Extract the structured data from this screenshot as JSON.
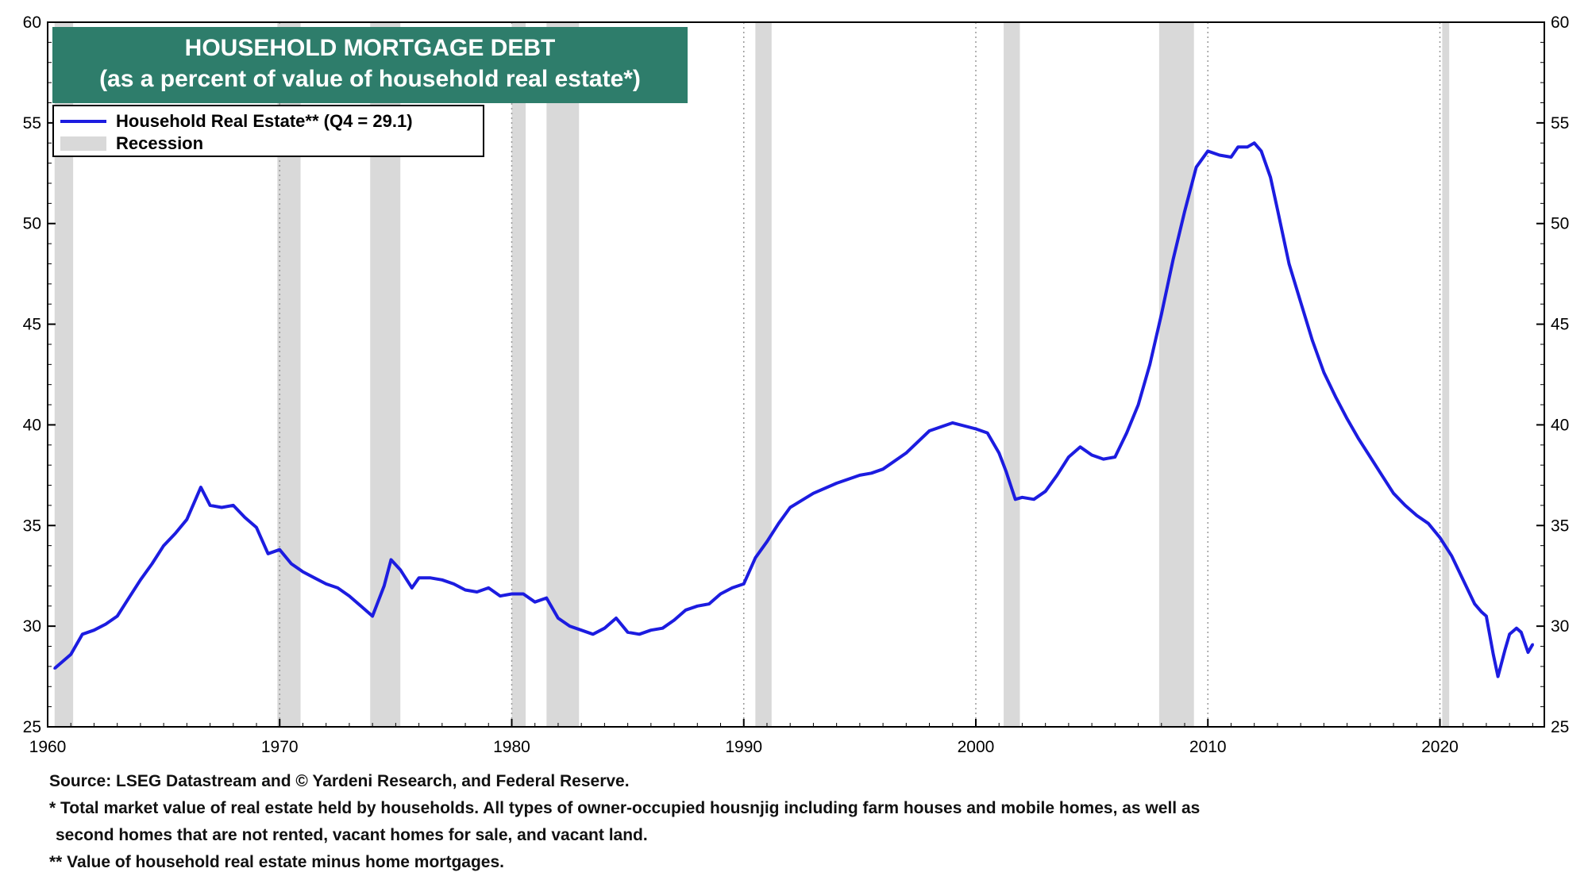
{
  "title": {
    "line1": "HOUSEHOLD MORTGAGE DEBT",
    "line2": "(as a percent of value of  household real estate*)"
  },
  "legend": {
    "series_label": "Household Real Estate** (Q4 = 29.1)",
    "recession_label": "Recession"
  },
  "notes": {
    "source": "Source: LSEG Datastream and © Yardeni Research, and Federal Reserve.",
    "note1_a": "* Total market value of real estate held by households. All types of owner-occupied housnjig including farm houses and mobile homes, as well as",
    "note1_b": "second homes that are not rented, vacant homes for sale, and vacant land.",
    "note2": "** Value of household real estate minus home mortgages."
  },
  "colors": {
    "series": "#1c1ce0",
    "recession": "#d9d9d9",
    "title_bg": "#2e7d6b"
  },
  "chart_data": {
    "type": "line",
    "xlim": [
      1960,
      2024.5
    ],
    "ylim": [
      25,
      60
    ],
    "x_ticks": [
      "1960",
      "1970",
      "1980",
      "1990",
      "2000",
      "2010",
      "2020"
    ],
    "y_ticks": [
      "25",
      "30",
      "35",
      "40",
      "45",
      "50",
      "55",
      "60"
    ],
    "grid": "vertical dotted at decades",
    "recessions": [
      [
        1960.3,
        1961.1
      ],
      [
        1969.9,
        1970.9
      ],
      [
        1973.9,
        1975.2
      ],
      [
        1980.0,
        1980.6
      ],
      [
        1981.5,
        1982.9
      ],
      [
        1990.5,
        1991.2
      ],
      [
        2001.2,
        2001.9
      ],
      [
        2007.9,
        2009.4
      ],
      [
        2020.1,
        2020.4
      ]
    ],
    "series": [
      {
        "name": "Household Real Estate** (Q4 = 29.1)",
        "x": [
          1960.3,
          1961.0,
          1961.5,
          1962.0,
          1962.5,
          1963.0,
          1963.5,
          1964.0,
          1964.5,
          1965.0,
          1965.5,
          1966.0,
          1966.3,
          1966.6,
          1967.0,
          1967.5,
          1968.0,
          1968.5,
          1969.0,
          1969.5,
          1970.0,
          1970.5,
          1971.0,
          1971.5,
          1972.0,
          1972.5,
          1973.0,
          1973.5,
          1974.0,
          1974.5,
          1974.8,
          1975.2,
          1975.7,
          1976.0,
          1976.5,
          1977.0,
          1977.5,
          1978.0,
          1978.5,
          1979.0,
          1979.5,
          1980.0,
          1980.5,
          1981.0,
          1981.5,
          1982.0,
          1982.5,
          1983.0,
          1983.5,
          1984.0,
          1984.5,
          1985.0,
          1985.5,
          1986.0,
          1986.5,
          1987.0,
          1987.5,
          1988.0,
          1988.5,
          1989.0,
          1989.5,
          1990.0,
          1990.5,
          1991.0,
          1991.5,
          1992.0,
          1993.0,
          1994.0,
          1995.0,
          1995.5,
          1996.0,
          1997.0,
          1998.0,
          1999.0,
          2000.0,
          2000.5,
          2001.0,
          2001.3,
          2001.7,
          2002.0,
          2002.5,
          2003.0,
          2003.5,
          2004.0,
          2004.5,
          2005.0,
          2005.5,
          2006.0,
          2006.5,
          2007.0,
          2007.5,
          2008.0,
          2008.5,
          2009.0,
          2009.5,
          2010.0,
          2010.5,
          2011.0,
          2011.3,
          2011.7,
          2012.0,
          2012.3,
          2012.7,
          2013.0,
          2013.5,
          2014.0,
          2014.5,
          2015.0,
          2015.5,
          2016.0,
          2016.5,
          2017.0,
          2017.5,
          2018.0,
          2018.5,
          2019.0,
          2019.5,
          2020.0,
          2020.5,
          2021.0,
          2021.5,
          2021.8,
          2022.0,
          2022.3,
          2022.5,
          2022.8,
          2023.0,
          2023.3,
          2023.5,
          2023.8,
          2024.0
        ],
        "y": [
          27.9,
          28.6,
          29.6,
          29.8,
          30.1,
          30.5,
          31.4,
          32.3,
          33.1,
          34.0,
          34.6,
          35.3,
          36.1,
          36.9,
          36.0,
          35.9,
          36.0,
          35.4,
          34.9,
          33.6,
          33.8,
          33.1,
          32.7,
          32.4,
          32.1,
          31.9,
          31.5,
          31.0,
          30.5,
          32.0,
          33.3,
          32.8,
          31.9,
          32.4,
          32.4,
          32.3,
          32.1,
          31.8,
          31.7,
          31.9,
          31.5,
          31.6,
          31.6,
          31.2,
          31.4,
          30.4,
          30.0,
          29.8,
          29.6,
          29.9,
          30.4,
          29.7,
          29.6,
          29.8,
          29.9,
          30.3,
          30.8,
          31.0,
          31.1,
          31.6,
          31.9,
          32.1,
          33.4,
          34.2,
          35.1,
          35.9,
          36.6,
          37.1,
          37.5,
          37.6,
          37.8,
          38.6,
          39.7,
          40.1,
          39.8,
          39.6,
          38.6,
          37.7,
          36.3,
          36.4,
          36.3,
          36.7,
          37.5,
          38.4,
          38.9,
          38.5,
          38.3,
          38.4,
          39.6,
          41.0,
          43.0,
          45.5,
          48.2,
          50.6,
          52.8,
          53.6,
          53.4,
          53.3,
          53.8,
          53.8,
          54.0,
          53.6,
          52.3,
          50.7,
          48.0,
          46.1,
          44.2,
          42.6,
          41.4,
          40.3,
          39.3,
          38.4,
          37.5,
          36.6,
          36.0,
          35.5,
          35.1,
          34.4,
          33.5,
          32.3,
          31.1,
          30.7,
          30.5,
          28.6,
          27.5,
          28.8,
          29.6,
          29.9,
          29.7,
          28.7,
          29.1
        ]
      }
    ]
  }
}
